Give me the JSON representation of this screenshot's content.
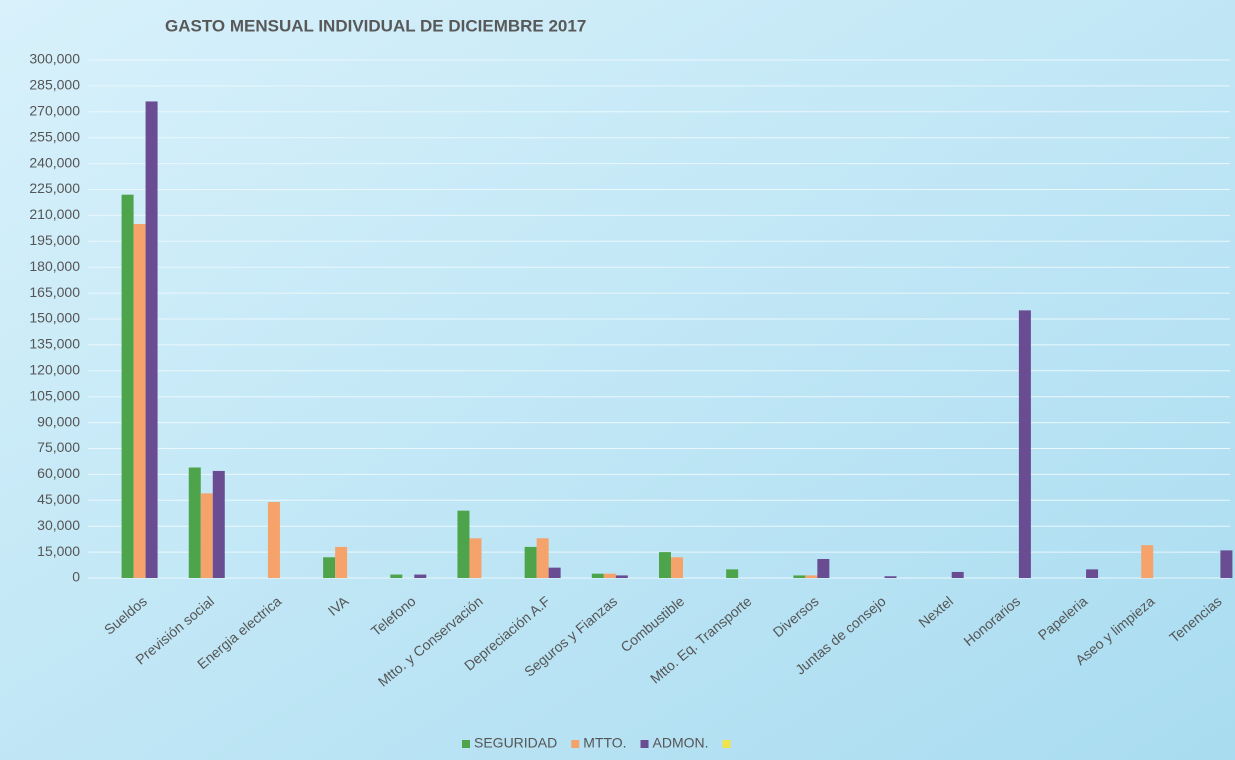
{
  "chart_data": {
    "type": "bar",
    "title": "GASTO MENSUAL INDIVIDUAL DE DICIEMBRE 2017",
    "categories": [
      "Sueldos",
      "Previsión social",
      "Energia electrica",
      "IVA",
      "Telefono",
      "Mtto. y Conservación",
      "Depreciación A.F",
      "Seguros y Fianzas",
      "Combustible",
      "Mtto. Eq. Transporte",
      "Diversos",
      "Juntas de consejo",
      "Nextel",
      "Honorarios",
      "Papeleria",
      "Aseo y limpieza",
      "Tenencias"
    ],
    "series": [
      {
        "name": "SEGURIDAD",
        "color": "#4ea44a",
        "values": [
          222000,
          64000,
          0,
          12000,
          2000,
          39000,
          18000,
          2500,
          15000,
          5000,
          1500,
          0,
          0,
          0,
          0,
          0,
          0
        ]
      },
      {
        "name": "MTTO.",
        "color": "#f5a36a",
        "values": [
          205000,
          49000,
          44000,
          18000,
          0,
          23000,
          23000,
          2500,
          12000,
          0,
          1500,
          0,
          0,
          0,
          0,
          19000,
          0
        ]
      },
      {
        "name": "ADMON.",
        "color": "#6a4c93",
        "values": [
          276000,
          62000,
          0,
          0,
          2000,
          0,
          6000,
          1500,
          0,
          0,
          11000,
          1000,
          3500,
          155000,
          5000,
          0,
          16000
        ]
      },
      {
        "name": null,
        "color": "#f2e34a",
        "values": [
          null,
          null,
          null,
          null,
          null,
          null,
          null,
          null,
          null,
          null,
          null,
          null,
          null,
          null,
          null,
          null,
          null
        ]
      }
    ],
    "ylim": [
      0,
      300000
    ],
    "yticks": [
      0,
      {
        "value": 15000,
        "label": "15,000"
      },
      {
        "value": 30000,
        "label": "30,000"
      },
      {
        "value": 45000,
        "label": "45,000"
      },
      {
        "value": 60000,
        "label": "60,000"
      },
      {
        "value": 75000,
        "label": "75,000"
      },
      {
        "value": 90000,
        "label": "90,000"
      },
      {
        "value": 105000,
        "label": "105,000"
      },
      {
        "value": 120000,
        "label": "120,000"
      },
      {
        "value": 135000,
        "label": "135,000"
      },
      {
        "value": 150000,
        "label": "150,000"
      },
      {
        "value": 165000,
        "label": "165,000"
      },
      {
        "value": 180000,
        "label": "180,000"
      },
      {
        "value": 195000,
        "label": "195,000"
      },
      {
        "value": 210000,
        "label": "210,000"
      },
      {
        "value": 225000,
        "label": "225,000"
      },
      {
        "value": 240000,
        "label": "240,000"
      },
      {
        "value": 255000,
        "label": "255,000"
      },
      {
        "value": 270000,
        "label": "270,000"
      },
      {
        "value": 285000,
        "label": "285,000"
      },
      {
        "value": {
          "value": 300000,
          "label": "300,000"
        },
        "label": "300,000"
      }
    ],
    "grid": true,
    "legend": "bottom"
  }
}
